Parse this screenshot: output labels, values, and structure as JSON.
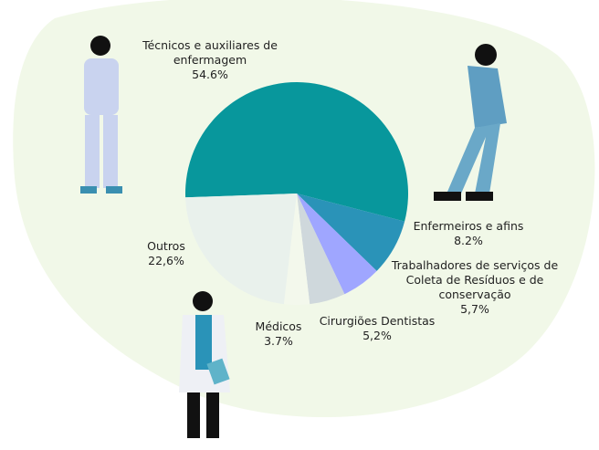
{
  "chart_data": {
    "type": "pie",
    "categories": [
      "Técnicos e auxiliares de enfermagem",
      "Enfermeiros e afins",
      "Trabalhadores de serviços de Coleta de Resíduos  e de conservação",
      "Cirurgiões Dentistas",
      "Médicos",
      "Outros"
    ],
    "values": [
      54.6,
      8.2,
      5.7,
      5.2,
      3.7,
      22.6
    ],
    "value_labels": [
      "54.6%",
      "8.2%",
      "5,7%",
      "5,2%",
      "3.7%",
      "22,6%"
    ],
    "colors": [
      "#08979c",
      "#2a93b8",
      "#9fa6ff",
      "#cfd8dc",
      "#f3f8ec",
      "#e9f1ec"
    ]
  }
}
